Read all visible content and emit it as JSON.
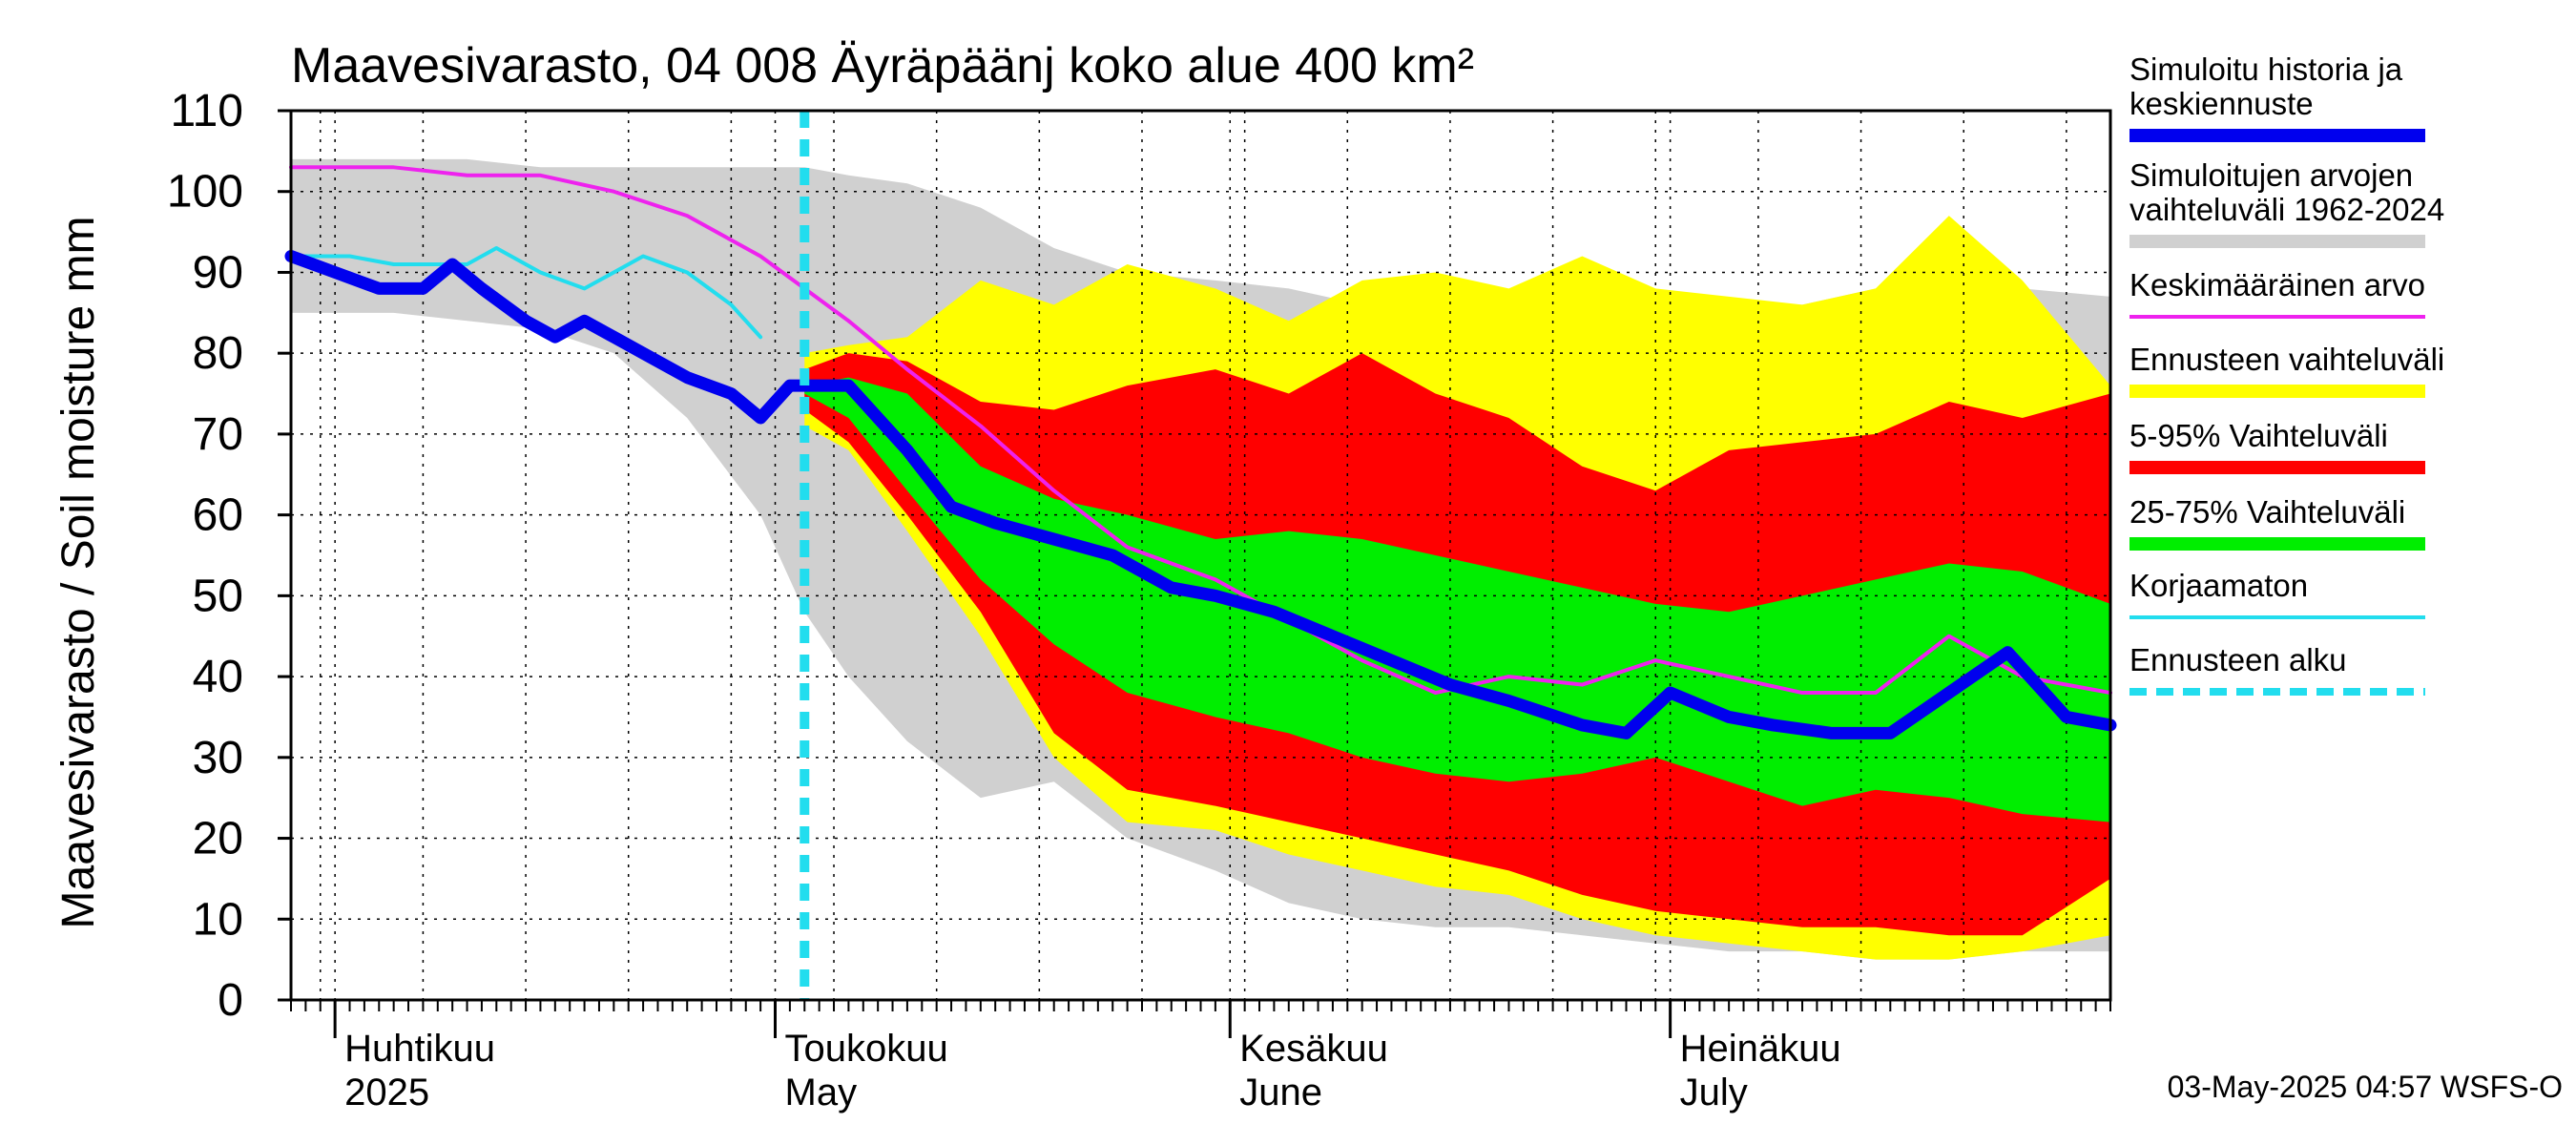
{
  "chart_data": {
    "type": "area",
    "title": "Maavesivarasto, 04 008 Äyräpäänj koko alue 400 km²",
    "ylabel": "Maavesivarasto / Soil moisture   mm",
    "xlabel": "",
    "ylim": [
      0,
      110
    ],
    "yticks": [
      0,
      10,
      20,
      30,
      40,
      50,
      60,
      70,
      80,
      90,
      100,
      110
    ],
    "xlim": [
      "2025-03-29",
      "2025-07-31"
    ],
    "grid": true,
    "forecast_start": "2025-05-03",
    "months": [
      {
        "fi": "Huhtikuu",
        "en": "2025",
        "date": "2025-04-01"
      },
      {
        "fi": "Toukokuu",
        "en": "May",
        "date": "2025-05-01"
      },
      {
        "fi": "Kesäkuu",
        "en": "June",
        "date": "2025-06-01"
      },
      {
        "fi": "Heinäkuu",
        "en": "July",
        "date": "2025-07-01"
      }
    ],
    "series": [
      {
        "name": "Simuloitujen arvojen vaihteluväli 1962-2024",
        "kind": "band",
        "color": "#d0d0d0",
        "x": [
          "2025-03-29",
          "2025-04-05",
          "2025-04-10",
          "2025-04-15",
          "2025-04-20",
          "2025-04-25",
          "2025-04-30",
          "2025-05-03",
          "2025-05-06",
          "2025-05-10",
          "2025-05-15",
          "2025-05-20",
          "2025-05-25",
          "2025-05-31",
          "2025-06-05",
          "2025-06-10",
          "2025-06-15",
          "2025-06-20",
          "2025-06-25",
          "2025-06-30",
          "2025-07-05",
          "2025-07-10",
          "2025-07-15",
          "2025-07-20",
          "2025-07-25",
          "2025-07-31"
        ],
        "upper": [
          104,
          104,
          104,
          103,
          103,
          103,
          103,
          103,
          102,
          101,
          98,
          93,
          90,
          89,
          88,
          86,
          87,
          86,
          86,
          85,
          86,
          86,
          88,
          90,
          88,
          87
        ],
        "lower": [
          85,
          85,
          84,
          83,
          80,
          72,
          60,
          48,
          40,
          32,
          25,
          27,
          20,
          16,
          12,
          10,
          9,
          9,
          8,
          7,
          6,
          6,
          5,
          5,
          6,
          6
        ]
      },
      {
        "name": "Ennusteen vaihteluväli",
        "kind": "band",
        "color": "#ffff00",
        "x": [
          "2025-05-03",
          "2025-05-06",
          "2025-05-10",
          "2025-05-15",
          "2025-05-20",
          "2025-05-25",
          "2025-05-31",
          "2025-06-05",
          "2025-06-10",
          "2025-06-15",
          "2025-06-20",
          "2025-06-25",
          "2025-06-30",
          "2025-07-05",
          "2025-07-10",
          "2025-07-15",
          "2025-07-20",
          "2025-07-25",
          "2025-07-31"
        ],
        "upper": [
          80,
          81,
          82,
          89,
          86,
          91,
          88,
          84,
          89,
          90,
          88,
          92,
          88,
          87,
          86,
          88,
          97,
          89,
          76
        ],
        "lower": [
          71,
          68,
          58,
          45,
          30,
          22,
          21,
          18,
          16,
          14,
          13,
          10,
          8,
          7,
          6,
          5,
          5,
          6,
          8
        ]
      },
      {
        "name": "5-95% Vaihteluväli",
        "kind": "band",
        "color": "#ff0000",
        "x": [
          "2025-05-03",
          "2025-05-06",
          "2025-05-10",
          "2025-05-15",
          "2025-05-20",
          "2025-05-25",
          "2025-05-31",
          "2025-06-05",
          "2025-06-10",
          "2025-06-15",
          "2025-06-20",
          "2025-06-25",
          "2025-06-30",
          "2025-07-05",
          "2025-07-10",
          "2025-07-15",
          "2025-07-20",
          "2025-07-25",
          "2025-07-31"
        ],
        "upper": [
          78,
          80,
          79,
          74,
          73,
          76,
          78,
          75,
          80,
          75,
          72,
          66,
          63,
          68,
          69,
          70,
          74,
          72,
          75
        ],
        "lower": [
          73,
          69,
          60,
          48,
          33,
          26,
          24,
          22,
          20,
          18,
          16,
          13,
          11,
          10,
          9,
          9,
          8,
          8,
          15
        ]
      },
      {
        "name": "25-75% Vaihteluväli",
        "kind": "band",
        "color": "#00ee00",
        "x": [
          "2025-05-03",
          "2025-05-06",
          "2025-05-10",
          "2025-05-15",
          "2025-05-20",
          "2025-05-25",
          "2025-05-31",
          "2025-06-05",
          "2025-06-10",
          "2025-06-15",
          "2025-06-20",
          "2025-06-25",
          "2025-06-30",
          "2025-07-05",
          "2025-07-10",
          "2025-07-15",
          "2025-07-20",
          "2025-07-25",
          "2025-07-31"
        ],
        "upper": [
          76,
          77,
          75,
          66,
          62,
          60,
          57,
          58,
          57,
          55,
          53,
          51,
          49,
          48,
          50,
          52,
          54,
          53,
          49
        ],
        "lower": [
          75,
          72,
          63,
          52,
          44,
          38,
          35,
          33,
          30,
          28,
          27,
          28,
          30,
          27,
          24,
          26,
          25,
          23,
          22
        ]
      },
      {
        "name": "Keskimääräinen arvo",
        "kind": "line",
        "color": "#ee22ee",
        "x": [
          "2025-03-29",
          "2025-04-05",
          "2025-04-10",
          "2025-04-15",
          "2025-04-20",
          "2025-04-25",
          "2025-04-30",
          "2025-05-03",
          "2025-05-06",
          "2025-05-10",
          "2025-05-15",
          "2025-05-20",
          "2025-05-25",
          "2025-05-31",
          "2025-06-05",
          "2025-06-10",
          "2025-06-15",
          "2025-06-20",
          "2025-06-25",
          "2025-06-30",
          "2025-07-05",
          "2025-07-10",
          "2025-07-15",
          "2025-07-20",
          "2025-07-25",
          "2025-07-31"
        ],
        "y": [
          103,
          103,
          102,
          102,
          100,
          97,
          92,
          88,
          84,
          78,
          71,
          63,
          56,
          52,
          47,
          42,
          38,
          40,
          39,
          42,
          40,
          38,
          38,
          45,
          40,
          38
        ]
      },
      {
        "name": "Korjaamaton",
        "kind": "line",
        "color": "#22ddee",
        "x": [
          "2025-03-29",
          "2025-04-02",
          "2025-04-05",
          "2025-04-08",
          "2025-04-10",
          "2025-04-12",
          "2025-04-15",
          "2025-04-18",
          "2025-04-20",
          "2025-04-22",
          "2025-04-25",
          "2025-04-28",
          "2025-04-30"
        ],
        "y": [
          92,
          92,
          91,
          91,
          91,
          93,
          90,
          88,
          90,
          92,
          90,
          86,
          82
        ]
      },
      {
        "name": "Simuloitu historia ja keskiennuste",
        "kind": "line",
        "color": "#0000ee",
        "x": [
          "2025-03-29",
          "2025-04-01",
          "2025-04-04",
          "2025-04-07",
          "2025-04-09",
          "2025-04-11",
          "2025-04-14",
          "2025-04-16",
          "2025-04-18",
          "2025-04-20",
          "2025-04-22",
          "2025-04-25",
          "2025-04-28",
          "2025-04-30",
          "2025-05-02",
          "2025-05-04",
          "2025-05-06",
          "2025-05-08",
          "2025-05-10",
          "2025-05-13",
          "2025-05-16",
          "2025-05-20",
          "2025-05-24",
          "2025-05-28",
          "2025-05-31",
          "2025-06-04",
          "2025-06-08",
          "2025-06-12",
          "2025-06-16",
          "2025-06-20",
          "2025-06-25",
          "2025-06-28",
          "2025-07-01",
          "2025-07-05",
          "2025-07-08",
          "2025-07-12",
          "2025-07-16",
          "2025-07-20",
          "2025-07-24",
          "2025-07-28",
          "2025-07-31"
        ],
        "y": [
          92,
          90,
          88,
          88,
          91,
          88,
          84,
          82,
          84,
          82,
          80,
          77,
          75,
          72,
          76,
          76,
          76,
          72,
          68,
          61,
          59,
          57,
          55,
          51,
          50,
          48,
          45,
          42,
          39,
          37,
          34,
          33,
          38,
          35,
          34,
          33,
          33,
          38,
          43,
          35,
          34
        ]
      }
    ],
    "legend": {
      "placement": "right",
      "entries": [
        {
          "label": "Simuloitu historia ja keskiennuste",
          "color": "#0000ee",
          "style": "solid-thick"
        },
        {
          "label": "Simuloitujen arvojen vaihteluväli 1962-2024",
          "color": "#d0d0d0",
          "style": "solid-thick"
        },
        {
          "label": "Keskimääräinen arvo",
          "color": "#ee22ee",
          "style": "solid"
        },
        {
          "label": "Ennusteen vaihteluväli",
          "color": "#ffff00",
          "style": "solid-thick"
        },
        {
          "label": "5-95% Vaihteluväli",
          "color": "#ff0000",
          "style": "solid-thick"
        },
        {
          "label": "25-75% Vaihteluväli",
          "color": "#00ee00",
          "style": "solid-thick"
        },
        {
          "label": "Korjaamaton",
          "color": "#22ddee",
          "style": "solid"
        },
        {
          "label": "Ennusteen alku",
          "color": "#22ddee",
          "style": "dashed"
        }
      ]
    },
    "footer": "03-May-2025 04:57 WSFS-O"
  }
}
